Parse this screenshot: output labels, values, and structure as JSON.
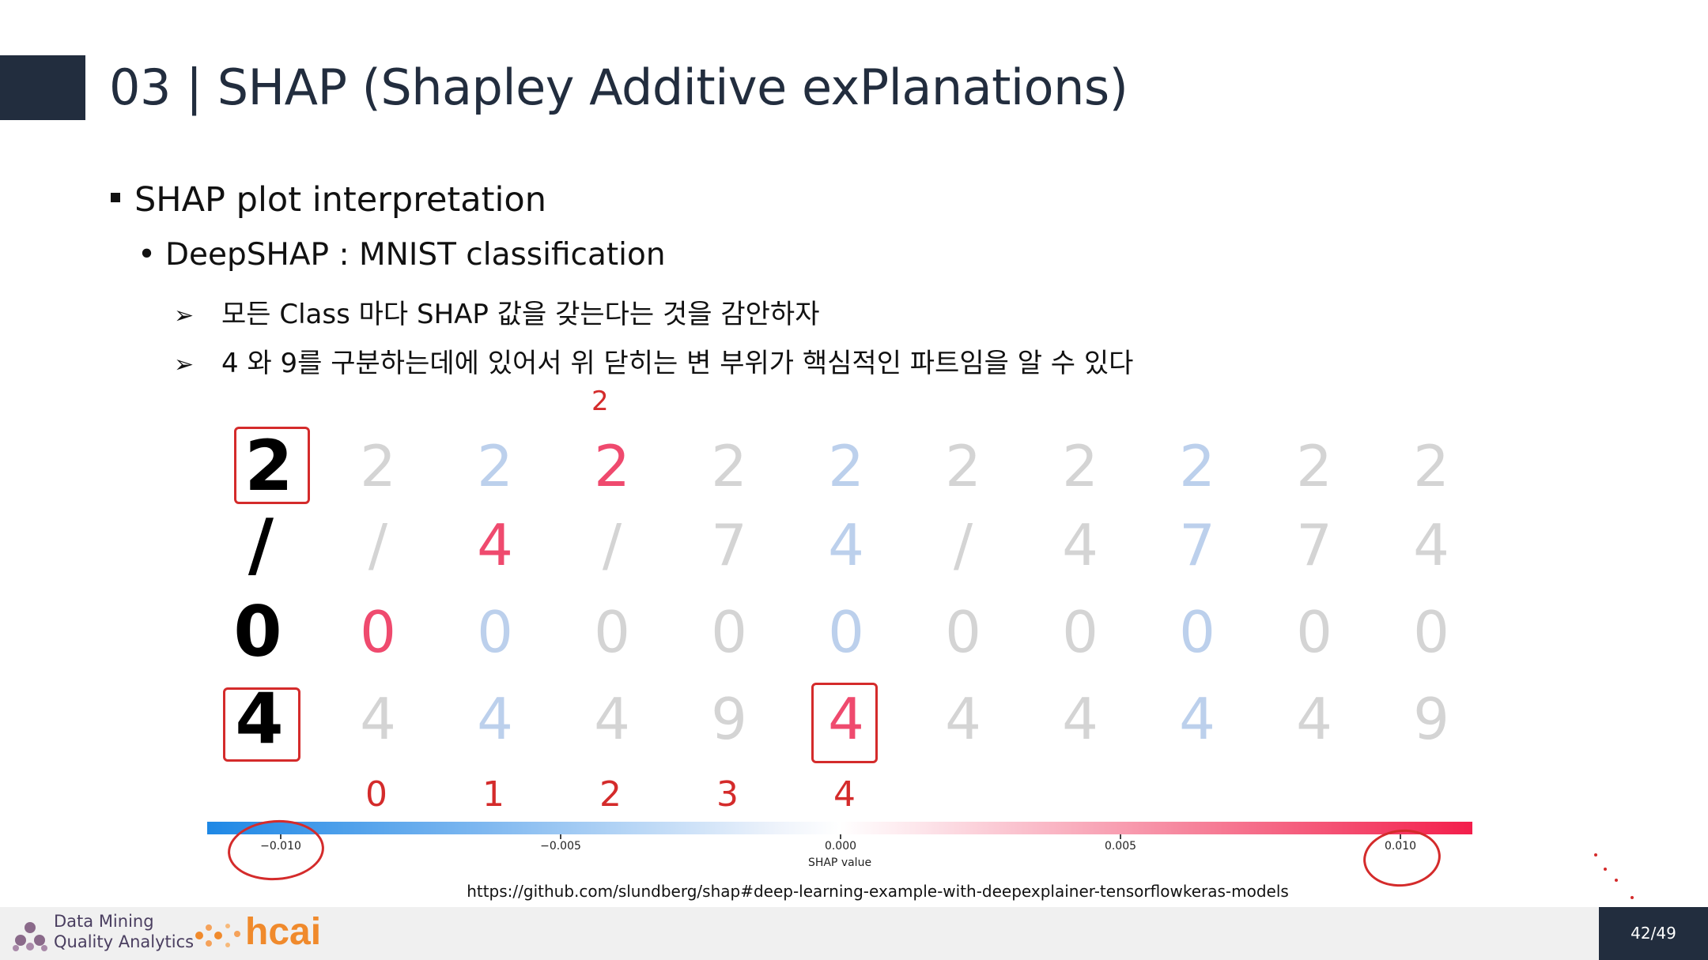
{
  "slide": {
    "title": "03 | SHAP (Shapley Additive exPlanations)",
    "bullet_level1": "SHAP plot interpretation",
    "bullet_level2": "DeepSHAP : MNIST classification",
    "bullet_level3": [
      "모든 Class 마다 SHAP 값을 갖는다는 것을 감안하자",
      "4 와 9를 구분하는데에 있어서 위 닫히는 변 부위가 핵심적인 파트임을 알 수 있다"
    ],
    "arrow_glyph": "➢",
    "bullet_dot": "•"
  },
  "figure": {
    "rows": [
      {
        "original": "2",
        "explanations": [
          "2",
          "2",
          "2",
          "2",
          "2",
          "2",
          "2",
          "2",
          "2",
          "2"
        ],
        "highlight_index": 2
      },
      {
        "original": "/",
        "explanations": [
          "/",
          "4",
          "/",
          "7",
          "4",
          "/",
          "4",
          "7",
          "7",
          "4"
        ],
        "highlight_index": 1
      },
      {
        "original": "0",
        "explanations": [
          "0",
          "0",
          "0",
          "0",
          "0",
          "0",
          "0",
          "0",
          "0",
          "0"
        ],
        "highlight_index": 0
      },
      {
        "original": "4",
        "explanations": [
          "4",
          "4",
          "4",
          "9",
          "4",
          "4",
          "4",
          "4",
          "4",
          "9"
        ],
        "highlight_index": 4
      }
    ],
    "top_annotation": "2",
    "class_annotations": [
      "0",
      "1",
      "2",
      "3",
      "4"
    ]
  },
  "colorbar": {
    "ticks": [
      "−0.010",
      "−0.005",
      "0.000",
      "0.005",
      "0.010"
    ],
    "label": "SHAP value",
    "colors": {
      "negative": "#1e88e5",
      "neutral": "#ffffff",
      "positive": "#f31e4b"
    }
  },
  "source_url": "https://github.com/slundberg/shap#deep-learning-example-with-deepexplainer-tensorflowkeras-models",
  "footer": {
    "org_line1": "Data Mining",
    "org_line2": "Quality Analytics",
    "lab_logo": "hcai",
    "page": "42/49"
  },
  "colors": {
    "title_navy": "#222d3e",
    "annotation_red": "#d42b2b",
    "hcai_orange": "#f08a2c"
  }
}
